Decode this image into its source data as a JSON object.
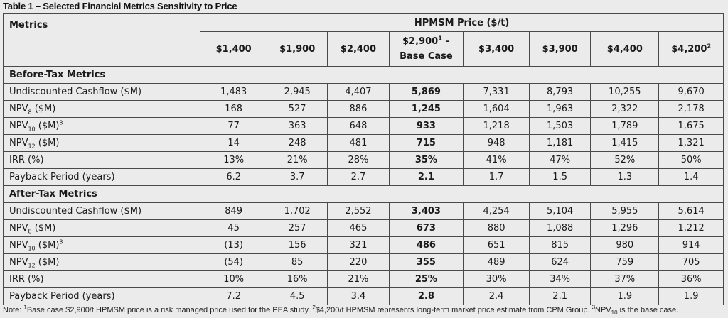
{
  "caption": "Table 1 – Selected Financial Metrics Sensitivity to Price",
  "header": {
    "metrics_label": "Metrics",
    "price_group": "HPMSM Price ($/t)",
    "prices": [
      {
        "main": "$1,400",
        "sup": ""
      },
      {
        "main": "$1,900",
        "sup": ""
      },
      {
        "main": "$2,400",
        "sup": ""
      },
      {
        "main": "$2,900",
        "sup": "1",
        "after": " –",
        "line2": "Base Case"
      },
      {
        "main": "$3,400",
        "sup": ""
      },
      {
        "main": "$3,900",
        "sup": ""
      },
      {
        "main": "$4,400",
        "sup": ""
      },
      {
        "main": "$4,200",
        "sup": "2"
      }
    ]
  },
  "sections": [
    {
      "title": "Before-Tax Metrics",
      "rows": [
        {
          "label": "Undiscounted Cashflow ($M)",
          "values": [
            "1,483",
            "2,945",
            "4,407",
            "5,869",
            "7,331",
            "8,793",
            "10,255",
            "9,670"
          ]
        },
        {
          "label": "NPV",
          "sub": "8",
          "suffix": " ($M)",
          "values": [
            "168",
            "527",
            "886",
            "1,245",
            "1,604",
            "1,963",
            "2,322",
            "2,178"
          ]
        },
        {
          "label": "NPV",
          "sub": "10",
          "suffix": " ($M)",
          "sup": "3",
          "values": [
            "77",
            "363",
            "648",
            "933",
            "1,218",
            "1,503",
            "1,789",
            "1,675"
          ]
        },
        {
          "label": "NPV",
          "sub": "12",
          "suffix": " ($M)",
          "values": [
            "14",
            "248",
            "481",
            "715",
            "948",
            "1,181",
            "1,415",
            "1,321"
          ]
        },
        {
          "label": "IRR (%)",
          "values": [
            "13%",
            "21%",
            "28%",
            "35%",
            "41%",
            "47%",
            "52%",
            "50%"
          ]
        },
        {
          "label": "Payback Period (years)",
          "values": [
            "6.2",
            "3.7",
            "2.7",
            "2.1",
            "1.7",
            "1.5",
            "1.3",
            "1.4"
          ]
        }
      ]
    },
    {
      "title": "After-Tax Metrics",
      "rows": [
        {
          "label": "Undiscounted Cashflow ($M)",
          "values": [
            "849",
            "1,702",
            "2,552",
            "3,403",
            "4,254",
            "5,104",
            "5,955",
            "5,614"
          ]
        },
        {
          "label": "NPV",
          "sub": "8",
          "suffix": " ($M)",
          "values": [
            "45",
            "257",
            "465",
            "673",
            "880",
            "1,088",
            "1,296",
            "1,212"
          ]
        },
        {
          "label": "NPV",
          "sub": "10",
          "suffix": " ($M)",
          "sup": "3",
          "values": [
            "(13)",
            "156",
            "321",
            "486",
            "651",
            "815",
            "980",
            "914"
          ]
        },
        {
          "label": "NPV",
          "sub": "12",
          "suffix": " ($M)",
          "values": [
            "(54)",
            "85",
            "220",
            "355",
            "489",
            "624",
            "759",
            "705"
          ]
        },
        {
          "label": "IRR (%)",
          "values": [
            "10%",
            "16%",
            "21%",
            "25%",
            "30%",
            "34%",
            "37%",
            "36%"
          ]
        },
        {
          "label": "Payback Period (years)",
          "values": [
            "7.2",
            "4.5",
            "3.4",
            "2.8",
            "2.4",
            "2.1",
            "1.9",
            "1.9"
          ]
        }
      ]
    }
  ],
  "note": {
    "prefix": "Note: ",
    "sup1": "1",
    "text1": "Base case $2,900/t HPMSM price is a risk managed price used for the PEA study. ",
    "sup2": "2",
    "text2": "$4,200/t HPMSM represents long-term market price estimate from CPM Group. ",
    "sup3": "3",
    "text3": "NPV",
    "sub3": "10",
    "text4": " is the base case."
  }
}
